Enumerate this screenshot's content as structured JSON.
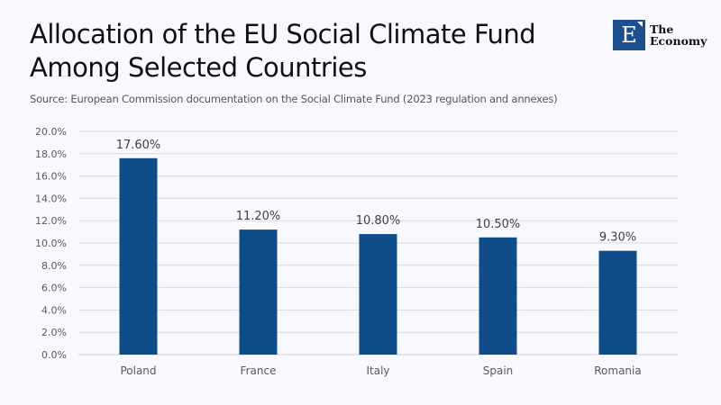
{
  "header": {
    "title_line1": "Allocation of the EU Social Climate Fund",
    "title_line2": "Among Selected Countries",
    "source": "Source:  European Commission documentation on the Social Climate Fund (2023 regulation and annexes)"
  },
  "logo": {
    "letter": "E",
    "line1": "The",
    "line2": "Economy",
    "color": "#1d4f8f"
  },
  "chart_data": {
    "type": "bar",
    "title": "Allocation of the EU Social Climate Fund Among Selected Countries",
    "xlabel": "",
    "ylabel": "",
    "categories": [
      "Poland",
      "France",
      "Italy",
      "Spain",
      "Romania"
    ],
    "values": [
      17.6,
      11.2,
      10.8,
      10.5,
      9.3
    ],
    "data_labels": [
      "17.60%",
      "11.20%",
      "10.80%",
      "10.50%",
      "9.30%"
    ],
    "ylim": [
      0,
      20
    ],
    "yticks": [
      0,
      2,
      4,
      6,
      8,
      10,
      12,
      14,
      16,
      18,
      20
    ],
    "ytick_labels": [
      "0.0%",
      "2.0%",
      "4.0%",
      "6.0%",
      "8.0%",
      "10.0%",
      "12.0%",
      "14.0%",
      "16.0%",
      "18.0%",
      "20.0%"
    ],
    "grid": true,
    "legend": "none",
    "bar_color": "#0e4c8a"
  }
}
